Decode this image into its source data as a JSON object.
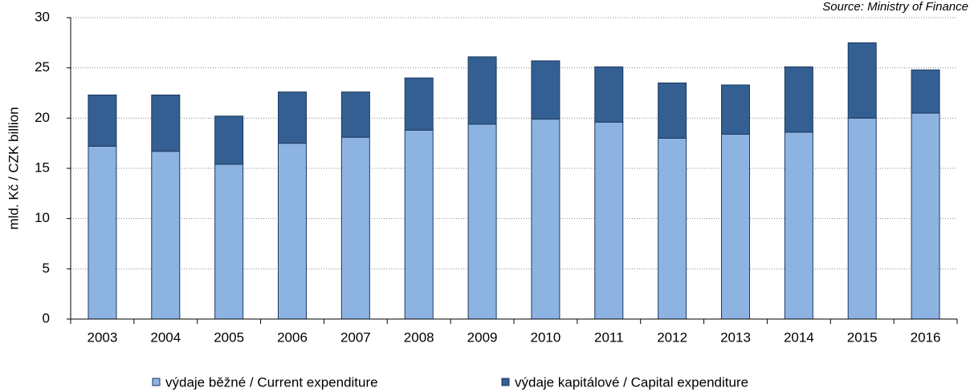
{
  "chart_data": {
    "type": "stacked_bar",
    "source": "Source: Ministry of Finance",
    "y_label": "mld. Kč / CZK billion",
    "categories": [
      "2003",
      "2004",
      "2005",
      "2006",
      "2007",
      "2008",
      "2009",
      "2010",
      "2011",
      "2012",
      "2013",
      "2014",
      "2015",
      "2016"
    ],
    "series": [
      {
        "name": "výdaje běžné / Current expenditure",
        "color": "#8db3e2",
        "values": [
          17.2,
          16.7,
          15.4,
          17.5,
          18.1,
          18.8,
          19.4,
          19.9,
          19.6,
          18.0,
          18.4,
          18.6,
          20.0,
          20.5
        ]
      },
      {
        "name": "výdaje kapitálové / Capital expenditure",
        "color": "#335f92",
        "values": [
          5.1,
          5.6,
          4.8,
          5.1,
          4.5,
          5.2,
          6.7,
          5.8,
          5.5,
          5.5,
          4.9,
          6.5,
          7.5,
          4.3
        ]
      }
    ],
    "ylim": [
      0,
      30
    ],
    "yticks": [
      0,
      5,
      10,
      15,
      20,
      25,
      30
    ],
    "grid": true
  }
}
